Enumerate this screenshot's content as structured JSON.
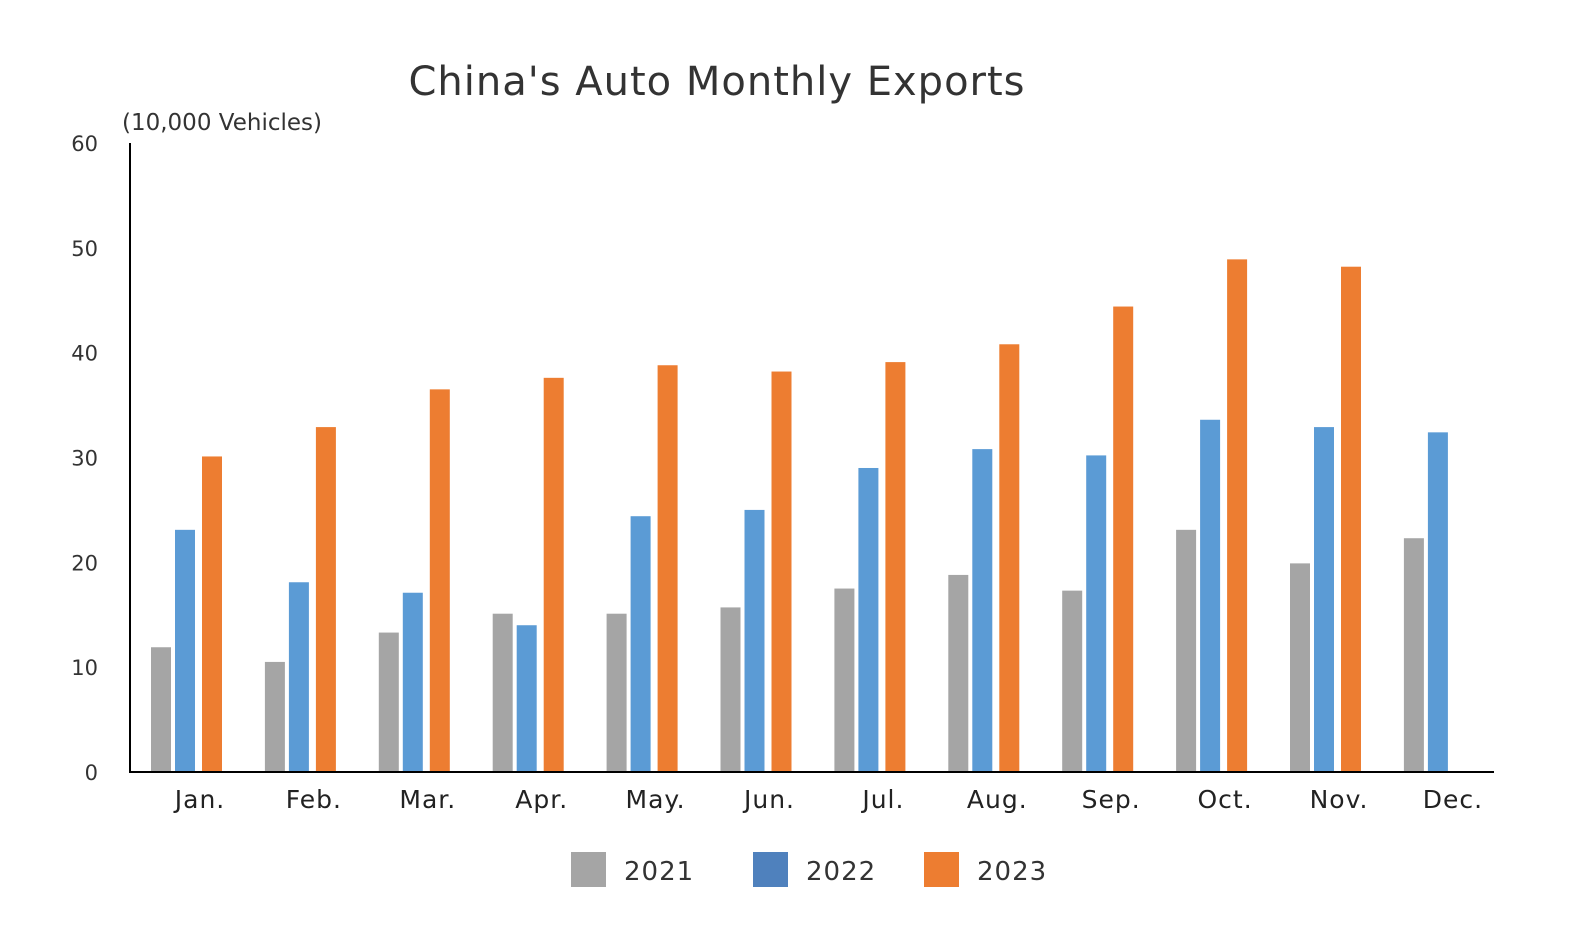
{
  "chart_data": {
    "type": "bar",
    "title": "China's Auto Monthly Exports",
    "ylabel": "(10,000 Vehicles)",
    "xlabel": "",
    "ylim": [
      0,
      60
    ],
    "yticks": [
      0,
      10,
      20,
      30,
      40,
      50,
      60
    ],
    "grid": false,
    "legend_position": "bottom",
    "categories": [
      "Jan.",
      "Feb.",
      "Mar.",
      "Apr.",
      "May.",
      "Jun.",
      "Jul.",
      "Aug.",
      "Sep.",
      "Oct.",
      "Nov.",
      "Dec."
    ],
    "series": [
      {
        "name": "2021",
        "color": "#A5A5A5",
        "legend_color": "#A5A5A5",
        "values": [
          11.9,
          10.5,
          13.3,
          15.1,
          15.1,
          15.7,
          17.5,
          18.8,
          17.3,
          23.1,
          19.9,
          22.3
        ]
      },
      {
        "name": "2022",
        "color": "#5B9BD5",
        "legend_color": "#4F81BD",
        "values": [
          23.1,
          18.1,
          17.1,
          14.0,
          24.4,
          25.0,
          29.0,
          30.8,
          30.2,
          33.6,
          32.9,
          32.4
        ]
      },
      {
        "name": "2023",
        "color": "#ED7D31",
        "legend_color": "#ED7D31",
        "values": [
          30.1,
          32.9,
          36.5,
          37.6,
          38.8,
          38.2,
          39.1,
          40.8,
          44.4,
          48.9,
          48.2,
          null
        ]
      }
    ]
  }
}
